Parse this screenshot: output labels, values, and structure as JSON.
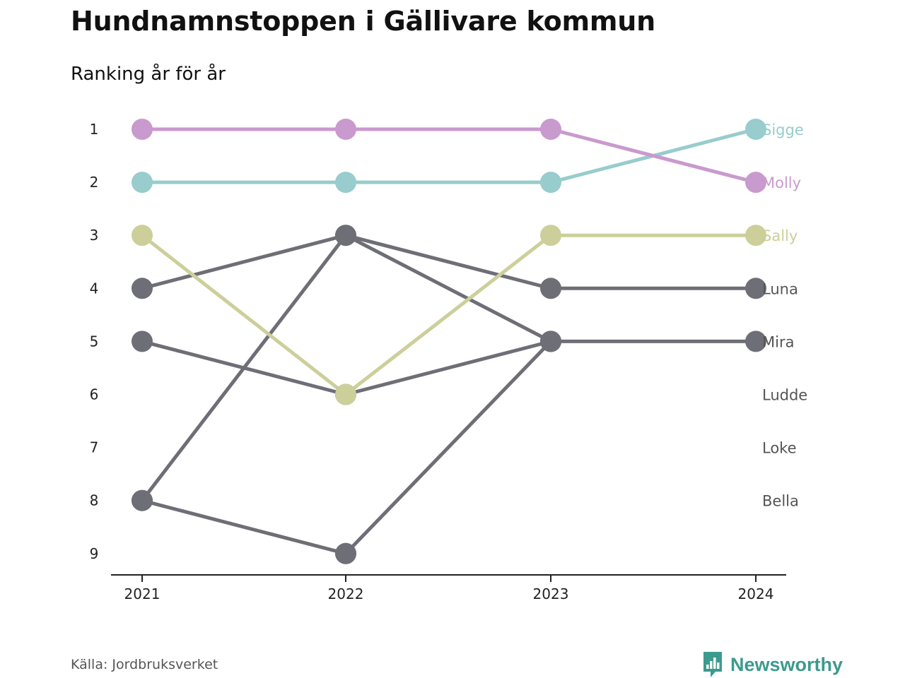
{
  "header": {
    "title": "Hundnamnstoppen i Gällivare kommun",
    "subtitle": "Ranking år för år"
  },
  "footer": {
    "source": "Källa: Jordbruksverket",
    "brand": "Newsworthy",
    "brand_color": "#3d9a8e"
  },
  "colors": {
    "grey": "#6e6e76",
    "axis": "#222222",
    "label_text": "#555555"
  },
  "chart_data": {
    "type": "line",
    "subtype": "bump",
    "title": "Hundnamnstoppen i Gällivare kommun",
    "subtitle": "Ranking år för år",
    "xlabel": "",
    "ylabel": "",
    "x": [
      "2021",
      "2022",
      "2023",
      "2024"
    ],
    "y_ticks": [
      1,
      2,
      3,
      4,
      5,
      6,
      7,
      8,
      9
    ],
    "ylim": [
      1,
      9
    ],
    "y_inverted": true,
    "grid": false,
    "end_labels": [
      "Sigge",
      "Molly",
      "Sally",
      "Luna",
      "Mira",
      "Ludde",
      "Loke",
      "Bella"
    ],
    "end_label_ranks": [
      1,
      2,
      3,
      4,
      5,
      6,
      7,
      8
    ],
    "series": [
      {
        "name": "Luna",
        "color": "#6e6e76",
        "values": [
          4,
          3,
          4,
          4
        ]
      },
      {
        "name": "Mira",
        "color": "#6e6e76",
        "values": [
          5,
          6,
          5,
          5
        ]
      },
      {
        "name": "Ludde",
        "color": "#6e6e76",
        "values": [
          8,
          3,
          5,
          null
        ]
      },
      {
        "name": "Loke",
        "color": "#6e6e76",
        "values": [
          null,
          9,
          5,
          null
        ]
      },
      {
        "name": "Bella",
        "color": "#6e6e76",
        "values": [
          8,
          9,
          null,
          null
        ]
      },
      {
        "name": "Sally",
        "color": "#cccf9a",
        "values": [
          3,
          6,
          3,
          3
        ]
      },
      {
        "name": "Sigge",
        "color": "#98cccd",
        "values": [
          2,
          2,
          2,
          1
        ]
      },
      {
        "name": "Molly",
        "color": "#c99acd",
        "values": [
          1,
          1,
          1,
          2
        ]
      }
    ]
  }
}
